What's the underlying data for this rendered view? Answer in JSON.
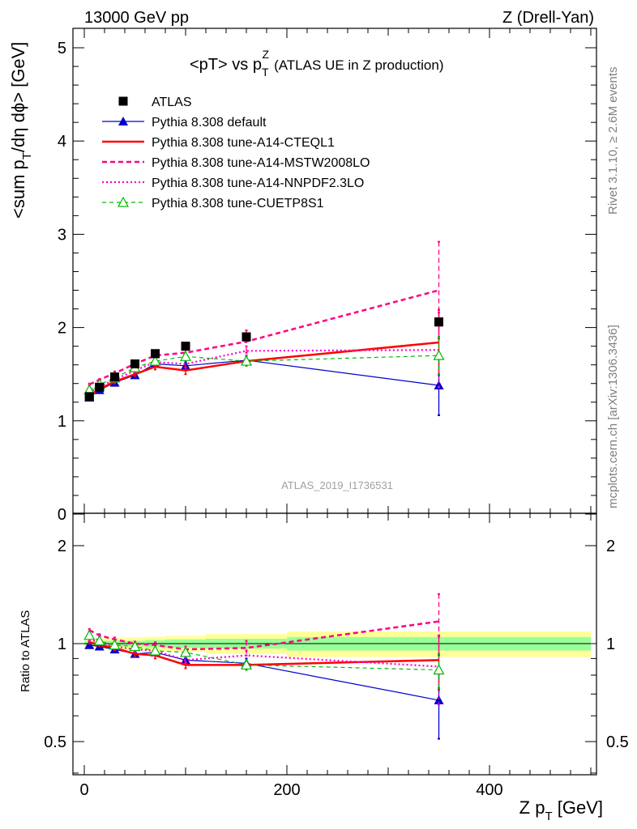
{
  "header": {
    "left_label": "13000 GeV pp",
    "right_label": "Z (Drell-Yan)"
  },
  "side_labels": {
    "rivet": "Rivet 3.1.10, ≥ 2.6M events",
    "mcplots": "mcplots.cern.ch [arXiv:1306.3436]"
  },
  "chart_data": [
    {
      "type": "scatter",
      "panel": "main",
      "title_main": "<pT> vs p",
      "title_sup": "Z",
      "title_sub": "T",
      "title_rest": "(ATLAS UE in Z production)",
      "ylabel_parts": [
        "<sum p",
        "T",
        "/dη dϕ> [GeV]"
      ],
      "watermark": "ATLAS_2019_I1736531",
      "xlim": [
        0,
        500
      ],
      "ylim": [
        0,
        5.2
      ],
      "yticks": [
        0,
        1,
        2,
        3,
        4,
        5
      ],
      "grid": false,
      "legend_position": "top-left",
      "x": [
        5,
        15,
        30,
        50,
        70,
        100,
        160,
        350
      ],
      "xerr": [
        5,
        5,
        10,
        10,
        10,
        20,
        40,
        150
      ],
      "series": [
        {
          "name": "ATLAS",
          "color": "#000000",
          "marker": "square",
          "style": "none",
          "values": [
            1.26,
            1.36,
            1.47,
            1.61,
            1.72,
            1.8,
            1.9,
            2.06
          ],
          "errors": [
            0.02,
            0.02,
            0.03,
            0.03,
            0.04,
            0.04,
            0.06,
            0.1
          ]
        },
        {
          "name": "Pythia 8.308 default",
          "color": "#0000cc",
          "marker": "triangle",
          "style": "solid",
          "values": [
            1.25,
            1.33,
            1.41,
            1.49,
            1.61,
            1.59,
            1.65,
            1.38
          ],
          "errors": [
            0.01,
            0.01,
            0.02,
            0.02,
            0.03,
            0.04,
            0.05,
            0.32
          ]
        },
        {
          "name": "Pythia 8.308 tune-A14-CTEQL1",
          "color": "#ff0000",
          "marker": "none",
          "style": "solid-thick",
          "values": [
            1.27,
            1.34,
            1.42,
            1.5,
            1.58,
            1.54,
            1.64,
            1.84
          ],
          "errors": [
            0.01,
            0.01,
            0.02,
            0.02,
            0.03,
            0.04,
            0.05,
            0.35
          ]
        },
        {
          "name": "Pythia 8.308 tune-A14-MSTW2008LO",
          "color": "#ff0080",
          "marker": "none",
          "style": "dashed",
          "values": [
            1.39,
            1.44,
            1.51,
            1.61,
            1.7,
            1.73,
            1.85,
            2.4
          ],
          "errors": [
            0.01,
            0.01,
            0.02,
            0.02,
            0.03,
            0.04,
            0.12,
            0.52
          ]
        },
        {
          "name": "Pythia 8.308 tune-A14-NNPDF2.3LO",
          "color": "#ff00cc",
          "marker": "none",
          "style": "dotted",
          "values": [
            1.3,
            1.37,
            1.44,
            1.54,
            1.63,
            1.61,
            1.75,
            1.76
          ],
          "errors": [
            0.01,
            0.01,
            0.02,
            0.02,
            0.03,
            0.04,
            0.05,
            0.4
          ]
        },
        {
          "name": "Pythia 8.308 tune-CUETP8S1",
          "color": "#00bb00",
          "marker": "triangle-open",
          "style": "dashed-thin",
          "values": [
            1.33,
            1.39,
            1.46,
            1.57,
            1.64,
            1.69,
            1.64,
            1.7
          ],
          "errors": [
            0.01,
            0.01,
            0.02,
            0.02,
            0.03,
            0.04,
            0.05,
            0.2
          ]
        }
      ]
    },
    {
      "type": "scatter",
      "panel": "ratio",
      "ylabel": "Ratio to ATLAS",
      "xlabel_parts": [
        "Z p",
        "T",
        " [GeV]"
      ],
      "xlim": [
        0,
        500
      ],
      "ylim": [
        0.3,
        2.3
      ],
      "yticks": [
        0.5,
        1,
        2
      ],
      "xticks": [
        0,
        200,
        400
      ],
      "grid": false,
      "x": [
        5,
        15,
        30,
        50,
        70,
        100,
        160,
        350
      ],
      "xerr": [
        5,
        5,
        10,
        10,
        10,
        20,
        40,
        150
      ],
      "bands": {
        "green_halfwidth": [
          0.015,
          0.015,
          0.02,
          0.02,
          0.025,
          0.03,
          0.035,
          0.048
        ],
        "yellow_halfwidth": [
          0.035,
          0.035,
          0.04,
          0.045,
          0.05,
          0.055,
          0.07,
          0.09
        ],
        "green_color": "#99ff99",
        "yellow_color": "#ffff99"
      },
      "series": [
        {
          "name": "Pythia 8.308 default",
          "values": [
            0.99,
            0.98,
            0.96,
            0.93,
            0.94,
            0.89,
            0.87,
            0.67
          ],
          "errors": [
            0.01,
            0.01,
            0.015,
            0.015,
            0.02,
            0.02,
            0.03,
            0.16
          ]
        },
        {
          "name": "Pythia 8.308 tune-A14-CTEQL1",
          "values": [
            1.01,
            0.99,
            0.97,
            0.93,
            0.92,
            0.86,
            0.86,
            0.89
          ],
          "errors": [
            0.01,
            0.01,
            0.015,
            0.015,
            0.02,
            0.02,
            0.03,
            0.17
          ]
        },
        {
          "name": "Pythia 8.308 tune-A14-MSTW2008LO",
          "values": [
            1.1,
            1.06,
            1.03,
            1.0,
            0.99,
            0.96,
            0.97,
            1.17
          ],
          "errors": [
            0.01,
            0.01,
            0.015,
            0.015,
            0.02,
            0.02,
            0.05,
            0.25
          ]
        },
        {
          "name": "Pythia 8.308 tune-A14-NNPDF2.3LO",
          "values": [
            1.03,
            1.01,
            0.98,
            0.96,
            0.95,
            0.89,
            0.92,
            0.85
          ],
          "errors": [
            0.01,
            0.01,
            0.015,
            0.015,
            0.02,
            0.02,
            0.03,
            0.2
          ]
        },
        {
          "name": "Pythia 8.308 tune-CUETP8S1",
          "values": [
            1.06,
            1.02,
            0.99,
            0.98,
            0.95,
            0.94,
            0.86,
            0.83
          ],
          "errors": [
            0.01,
            0.01,
            0.015,
            0.015,
            0.02,
            0.02,
            0.03,
            0.1
          ]
        }
      ]
    }
  ]
}
